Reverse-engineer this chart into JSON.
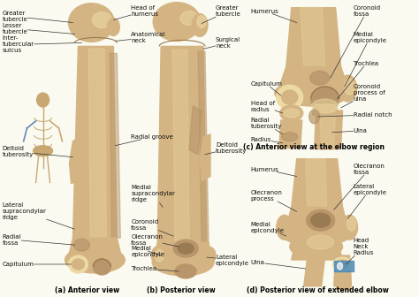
{
  "bg_color": "#FAFAF0",
  "bone_color": "#D4B483",
  "bone_light": "#EDD9A3",
  "bone_dark": "#B8956A",
  "bone_shadow": "#9A7A50",
  "text_color": "#111111",
  "caption_color": "#000000",
  "fig_width": 4.74,
  "fig_height": 3.36,
  "dpi": 100,
  "captions": {
    "a": "(a) Anterior view",
    "b": "(b) Posterior view",
    "c": "(c) Anterior view at the elbow region",
    "d": "(d) Posterior view of extended elbow"
  }
}
